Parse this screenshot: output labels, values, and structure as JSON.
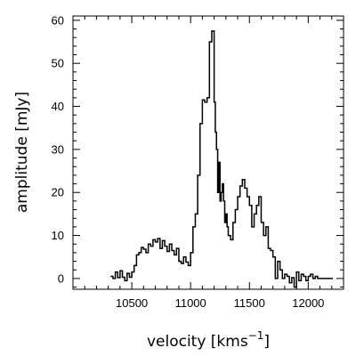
{
  "chart_data": {
    "type": "line",
    "style": "step",
    "xlabel": "velocity [kms",
    "xlabel_superscript": "−1",
    "xlabel_suffix": "]",
    "ylabel": "amplitude [mJy]",
    "xlim": [
      10000,
      12300
    ],
    "ylim": [
      -2.5,
      61
    ],
    "xticks": [
      10500,
      11000,
      11500,
      12000
    ],
    "xtick_labels": [
      "10500",
      "11000",
      "11500",
      "12000"
    ],
    "yticks": [
      0,
      10,
      20,
      30,
      40,
      50,
      60
    ],
    "ytick_labels": [
      "0",
      "10",
      "20",
      "30",
      "40",
      "50",
      "60"
    ],
    "grid": false,
    "series": [
      {
        "x": [
          10320,
          10340,
          10360,
          10380,
          10400,
          10420,
          10440,
          10460,
          10480,
          10500,
          10520,
          10540,
          10560,
          10580,
          10600,
          10620,
          10640,
          10660,
          10680,
          10700,
          10720,
          10740,
          10760,
          10780,
          10800,
          10820,
          10840,
          10860,
          10880,
          10900,
          10920,
          10940,
          10960,
          10980,
          11000,
          11020,
          11040,
          11060,
          11080,
          11100,
          11120,
          11140,
          11160,
          11180,
          11200,
          11210,
          11220,
          11230,
          11240,
          11250,
          11260,
          11270,
          11280,
          11290,
          11300,
          11310,
          11320,
          11340,
          11360,
          11380,
          11400,
          11420,
          11440,
          11460,
          11480,
          11500,
          11520,
          11540,
          11560,
          11580,
          11600,
          11620,
          11640,
          11660,
          11680,
          11700,
          11720,
          11740,
          11760,
          11780,
          11800,
          11820,
          11840,
          11860,
          11880,
          11900,
          11920,
          11940,
          11960,
          11980,
          12000,
          12020,
          12040,
          12060,
          12080,
          12100,
          12120,
          12140,
          12160,
          12180,
          12200
        ],
        "y": [
          0.5,
          0.0,
          1.5,
          0.2,
          1.8,
          0.3,
          -0.5,
          1.2,
          0.3,
          1.5,
          3.0,
          5.5,
          6.0,
          7.2,
          6.8,
          6.0,
          8.0,
          7.5,
          9.0,
          8.5,
          9.3,
          7.0,
          8.8,
          7.5,
          6.3,
          8.0,
          6.5,
          5.5,
          7.0,
          4.0,
          3.5,
          5.0,
          3.8,
          3.0,
          6.0,
          12.0,
          15.0,
          24.0,
          36.0,
          41.5,
          41.0,
          42.0,
          55.0,
          57.5,
          41.0,
          34.0,
          30.0,
          20.0,
          27.0,
          18.0,
          20.0,
          22.0,
          18.0,
          13.0,
          15.0,
          12.0,
          10.0,
          9.0,
          13.0,
          16.0,
          19.0,
          21.5,
          23.0,
          21.0,
          19.0,
          17.0,
          12.0,
          15.0,
          17.0,
          19.0,
          13.0,
          10.0,
          12.0,
          7.0,
          6.5,
          5.0,
          0.0,
          4.0,
          2.0,
          0.0,
          1.0,
          0.5,
          -1.0,
          0.2,
          -2.0,
          1.5,
          -0.5,
          1.0,
          0.5,
          -0.5,
          0.5,
          1.0,
          0.0,
          0.5,
          0.0,
          0.0,
          0.0,
          0.0,
          0.0,
          0.0,
          0.0
        ]
      }
    ]
  }
}
